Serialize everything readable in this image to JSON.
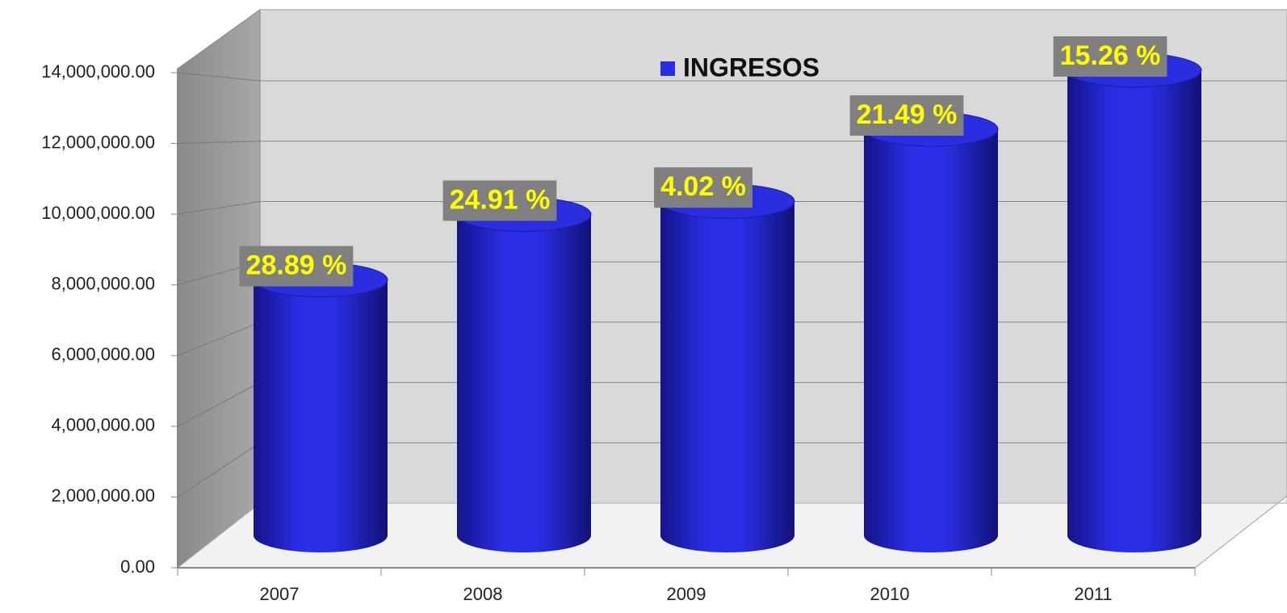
{
  "chart_data": {
    "type": "bar3d",
    "categories": [
      "2007",
      "2008",
      "2009",
      "2010",
      "2011"
    ],
    "series": [
      {
        "name": "INGRESOS",
        "color": "#2a2ee0",
        "values": [
          7800000,
          9800000,
          10200000,
          12400000,
          14200000
        ]
      }
    ],
    "data_labels": [
      "28.89 %",
      "24.91 %",
      "4.02 %",
      "21.49 %",
      "15.26 %"
    ],
    "ylim": [
      0,
      14000000
    ],
    "yticks": [
      {
        "value": 0,
        "label": "0.00"
      },
      {
        "value": 2000000,
        "label": "2,000,000.00"
      },
      {
        "value": 4000000,
        "label": "4,000,000.00"
      },
      {
        "value": 6000000,
        "label": "6,000,000.00"
      },
      {
        "value": 8000000,
        "label": "8,000,000.00"
      },
      {
        "value": 10000000,
        "label": "10,000,000.00"
      },
      {
        "value": 12000000,
        "label": "12,000,000.00"
      },
      {
        "value": 14000000,
        "label": "14,000,000.00"
      }
    ],
    "grid": true,
    "legend": "top"
  }
}
